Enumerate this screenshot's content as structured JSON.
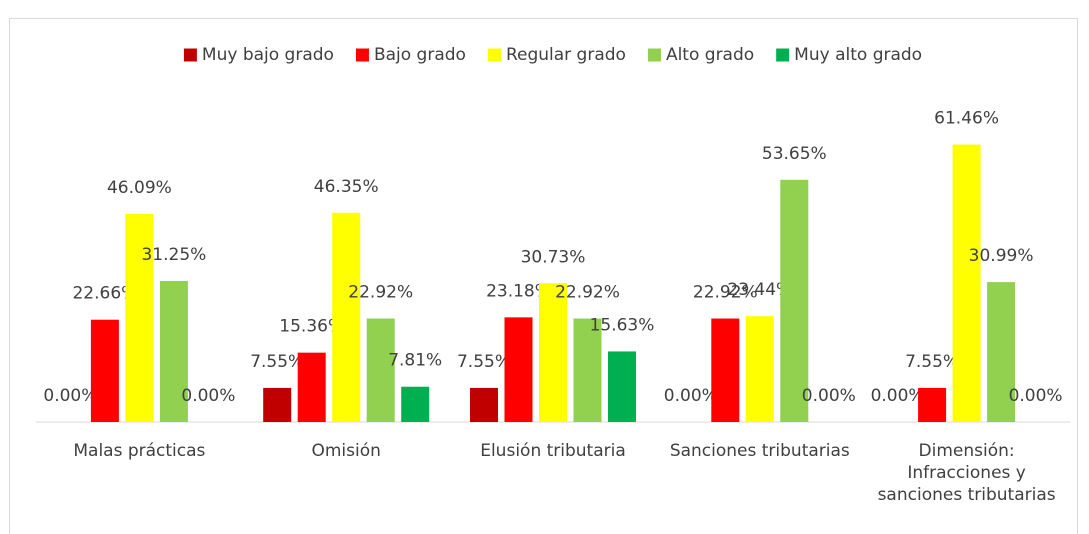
{
  "chart_data": {
    "type": "bar",
    "categories": [
      "Malas prácticas",
      "Omisión",
      "Elusión tributaria",
      "Sanciones tributarias",
      "Dimensión: Infracciones y sanciones tributarias"
    ],
    "series": [
      {
        "name": "Muy bajo grado",
        "color": "#c00000",
        "values": [
          0,
          7.55,
          7.55,
          0,
          0
        ],
        "value_labels": [
          "0.00%",
          "7.55%",
          "7.55%",
          "0.00%",
          "0.00%"
        ]
      },
      {
        "name": "Bajo grado",
        "color": "#ff0000",
        "values": [
          22.66,
          15.36,
          23.18,
          22.92,
          7.55
        ],
        "value_labels": [
          "22.66%",
          "15.36%",
          "23.18%",
          "22.92%",
          "7.55%"
        ]
      },
      {
        "name": "Regular grado",
        "color": "#ffff00",
        "values": [
          46.09,
          46.35,
          30.73,
          23.44,
          61.46
        ],
        "value_labels": [
          "46.09%",
          "46.35%",
          "30.73%",
          "23.44%",
          "61.46%"
        ]
      },
      {
        "name": "Alto grado",
        "color": "#92d050",
        "values": [
          31.25,
          22.92,
          22.92,
          53.65,
          30.99
        ],
        "value_labels": [
          "31.25%",
          "22.92%",
          "22.92%",
          "53.65%",
          "30.99%"
        ]
      },
      {
        "name": "Muy alto grado",
        "color": "#00b050",
        "values": [
          0,
          7.81,
          15.63,
          0,
          0
        ],
        "value_labels": [
          "0.00%",
          "7.81%",
          "15.63%",
          "0.00%",
          "0.00%"
        ]
      }
    ],
    "ylim": [
      0,
      70
    ],
    "legend": "top"
  }
}
